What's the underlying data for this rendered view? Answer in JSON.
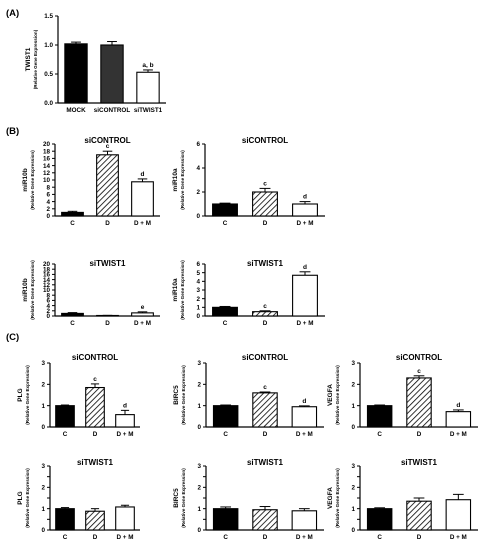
{
  "colors": {
    "black_bar": "#000000",
    "dark_gray_bar": "#333333",
    "white_bar": "#ffffff",
    "hatch": "#000000"
  },
  "panel_labels": [
    "(A)",
    "(B)",
    "(C)"
  ],
  "chart_data": [
    {
      "id": "A",
      "type": "bar",
      "title": "",
      "ylabel": "TWIST1",
      "ylabel_sub": "(Relative Gene Expression)",
      "categories": [
        "MOCK",
        "siCONTROL",
        "siTWIST1"
      ],
      "values": [
        1.02,
        1.0,
        0.53
      ],
      "errors": [
        0.03,
        0.06,
        0.04
      ],
      "fills": [
        "black",
        "dark",
        "white"
      ],
      "annotations": [
        "",
        "",
        "a, b"
      ],
      "ylim": [
        0,
        1.5
      ],
      "yticks": [
        0.0,
        0.5,
        1.0,
        1.5
      ],
      "ytick_labels": [
        "0.0",
        "0.5",
        "1.0",
        "1.5"
      ]
    },
    {
      "id": "B1",
      "type": "bar",
      "title": "siCONTROL",
      "ylabel": "miR10b",
      "ylabel_sub": "(Relative Gene Expression)",
      "categories": [
        "C",
        "D",
        "D + M"
      ],
      "values": [
        1.0,
        17.0,
        9.5
      ],
      "errors": [
        0.3,
        1.0,
        0.8
      ],
      "fills": [
        "black",
        "hatch",
        "white"
      ],
      "annotations": [
        "",
        "c",
        "d"
      ],
      "ylim": [
        0,
        20
      ],
      "yticks": [
        0,
        2,
        4,
        6,
        8,
        10,
        12,
        14,
        16,
        18,
        20
      ],
      "ytick_labels": [
        "0",
        "2",
        "4",
        "6",
        "8",
        "10",
        "12",
        "14",
        "16",
        "18",
        "20"
      ]
    },
    {
      "id": "B2",
      "type": "bar",
      "title": "siCONTROL",
      "ylabel": "miR10a",
      "ylabel_sub": "(Relative Gene Expression)",
      "categories": [
        "C",
        "D",
        "D + M"
      ],
      "values": [
        1.0,
        2.0,
        1.0
      ],
      "errors": [
        0.07,
        0.3,
        0.2
      ],
      "fills": [
        "black",
        "hatch",
        "white"
      ],
      "annotations": [
        "",
        "c",
        "d"
      ],
      "ylim": [
        0,
        6
      ],
      "yticks": [
        0,
        2,
        4,
        6
      ],
      "ytick_labels": [
        "0",
        "2",
        "4",
        "6"
      ]
    },
    {
      "id": "B3",
      "type": "bar",
      "title": "siTWIST1",
      "ylabel": "miR10b",
      "ylabel_sub": "(Relative Gene Expression)",
      "categories": [
        "C",
        "D",
        "D + M"
      ],
      "values": [
        1.0,
        0.2,
        1.2
      ],
      "errors": [
        0.3,
        0.05,
        0.4
      ],
      "fills": [
        "black",
        "hatch",
        "white"
      ],
      "annotations": [
        "",
        "",
        "e"
      ],
      "ylim": [
        0,
        20
      ],
      "yticks": [
        0,
        2,
        4,
        6,
        8,
        10,
        12,
        14,
        16,
        18,
        20
      ],
      "ytick_labels": [
        "0",
        "2",
        "4",
        "6",
        "8",
        "10",
        "12",
        "14",
        "16",
        "18",
        "20"
      ]
    },
    {
      "id": "B4",
      "type": "bar",
      "title": "siTWIST1",
      "ylabel": "miR10a",
      "ylabel_sub": "(Relative Gene Expression)",
      "categories": [
        "C",
        "D",
        "D + M"
      ],
      "values": [
        1.0,
        0.5,
        4.7
      ],
      "errors": [
        0.1,
        0.1,
        0.4
      ],
      "fills": [
        "black",
        "hatch",
        "white"
      ],
      "annotations": [
        "",
        "c",
        "d"
      ],
      "ylim": [
        0,
        6
      ],
      "yticks": [
        0,
        1,
        2,
        3,
        4,
        5,
        6
      ],
      "ytick_labels": [
        "0",
        "1",
        "2",
        "3",
        "4",
        "5",
        "6"
      ]
    },
    {
      "id": "C1",
      "type": "bar",
      "title": "siCONTROL",
      "ylabel": "PLG",
      "ylabel_sub": "(Relative Gene Expression)",
      "categories": [
        "C",
        "D",
        "D + M"
      ],
      "values": [
        1.0,
        1.85,
        0.58
      ],
      "errors": [
        0.03,
        0.17,
        0.2
      ],
      "fills": [
        "black",
        "hatch",
        "white"
      ],
      "annotations": [
        "",
        "c",
        "d"
      ],
      "ylim": [
        0,
        3
      ],
      "yticks": [
        0,
        1,
        2,
        3
      ],
      "ytick_labels": [
        "0",
        "1",
        "2",
        "3"
      ]
    },
    {
      "id": "C2",
      "type": "bar",
      "title": "siCONTROL",
      "ylabel": "BIRC5",
      "ylabel_sub": "(Relative Gene Expression)",
      "categories": [
        "C",
        "D",
        "D + M"
      ],
      "values": [
        1.0,
        1.6,
        0.95
      ],
      "errors": [
        0.03,
        0.04,
        0.04
      ],
      "fills": [
        "black",
        "hatch",
        "white"
      ],
      "annotations": [
        "",
        "c",
        "d"
      ],
      "ylim": [
        0,
        3
      ],
      "yticks": [
        0,
        1,
        2,
        3
      ],
      "ytick_labels": [
        "0",
        "1",
        "2",
        "3"
      ]
    },
    {
      "id": "C3",
      "type": "bar",
      "title": "siCONTROL",
      "ylabel": "VEGFA",
      "ylabel_sub": "(Relative Gene Expression)",
      "categories": [
        "C",
        "D",
        "D + M"
      ],
      "values": [
        1.0,
        2.3,
        0.72
      ],
      "errors": [
        0.03,
        0.1,
        0.08
      ],
      "fills": [
        "black",
        "hatch",
        "white"
      ],
      "annotations": [
        "",
        "c",
        "d"
      ],
      "ylim": [
        0,
        3
      ],
      "yticks": [
        0,
        1,
        2,
        3
      ],
      "ytick_labels": [
        "0",
        "1",
        "2",
        "3"
      ]
    },
    {
      "id": "C4",
      "type": "bar",
      "title": "siTWIST1",
      "ylabel": "PLG",
      "ylabel_sub": "(Relative Gene Expression)",
      "categories": [
        "C",
        "D",
        "D + M"
      ],
      "values": [
        1.0,
        0.88,
        1.08
      ],
      "errors": [
        0.05,
        0.12,
        0.08
      ],
      "fills": [
        "black",
        "hatch",
        "white"
      ],
      "annotations": [
        "",
        "",
        ""
      ],
      "ylim": [
        0,
        3
      ],
      "yticks": [
        0,
        0.5,
        1,
        1.5,
        2,
        2.5,
        3
      ],
      "ytick_labels": [
        "0",
        "",
        "1",
        "",
        "2",
        "",
        "3"
      ]
    },
    {
      "id": "C5",
      "type": "bar",
      "title": "siTWIST1",
      "ylabel": "BIRC5",
      "ylabel_sub": "(Relative Gene Expression)",
      "categories": [
        "C",
        "D",
        "D + M"
      ],
      "values": [
        1.0,
        0.95,
        0.9
      ],
      "errors": [
        0.08,
        0.15,
        0.1
      ],
      "fills": [
        "black",
        "hatch",
        "white"
      ],
      "annotations": [
        "",
        "",
        ""
      ],
      "ylim": [
        0,
        3
      ],
      "yticks": [
        0,
        0.5,
        1,
        1.5,
        2,
        2.5,
        3
      ],
      "ytick_labels": [
        "0",
        "",
        "1",
        "",
        "2",
        "",
        "3"
      ]
    },
    {
      "id": "C6",
      "type": "bar",
      "title": "siTWIST1",
      "ylabel": "VEGFA",
      "ylabel_sub": "(Relative Gene Expression)",
      "categories": [
        "C",
        "D",
        "D + M"
      ],
      "values": [
        1.0,
        1.35,
        1.42
      ],
      "errors": [
        0.04,
        0.15,
        0.25
      ],
      "fills": [
        "black",
        "hatch",
        "white"
      ],
      "annotations": [
        "",
        "",
        ""
      ],
      "ylim": [
        0,
        3
      ],
      "yticks": [
        0,
        0.5,
        1,
        1.5,
        2,
        2.5,
        3
      ],
      "ytick_labels": [
        "0",
        "",
        "1",
        "",
        "2",
        "",
        "3"
      ]
    }
  ]
}
